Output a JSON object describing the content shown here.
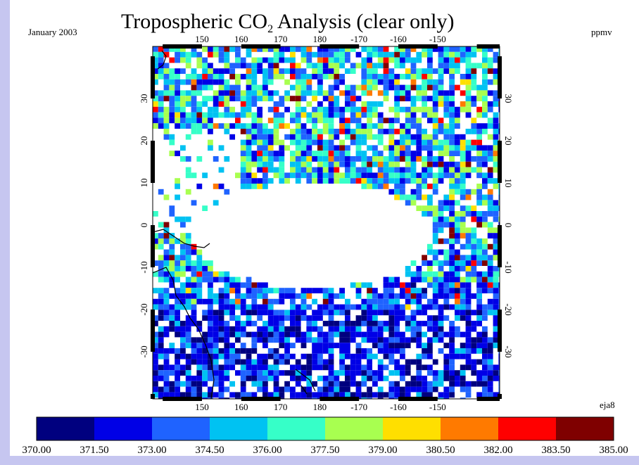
{
  "header": {
    "date": "January 2003",
    "title": [
      "Tropospheric CO",
      "2",
      " Analysis (clear only)"
    ],
    "units": "ppmv"
  },
  "map": {
    "lon_ticks": [
      150,
      160,
      170,
      180,
      -170,
      -160,
      -150
    ],
    "lat_ticks": [
      30,
      20,
      10,
      0,
      -10,
      -20,
      -30
    ],
    "tag": "eja8"
  },
  "colorbar": {
    "colors": [
      "#00007f",
      "#0000e6",
      "#1f63ff",
      "#00c2f2",
      "#36ffc8",
      "#a8ff50",
      "#ffdf00",
      "#ff7a00",
      "#ff0000",
      "#7f0000"
    ],
    "labels": [
      "370.00",
      "371.50",
      "373.00",
      "374.50",
      "376.00",
      "377.50",
      "379.00",
      "380.50",
      "382.00",
      "383.50",
      "385.00"
    ]
  }
}
